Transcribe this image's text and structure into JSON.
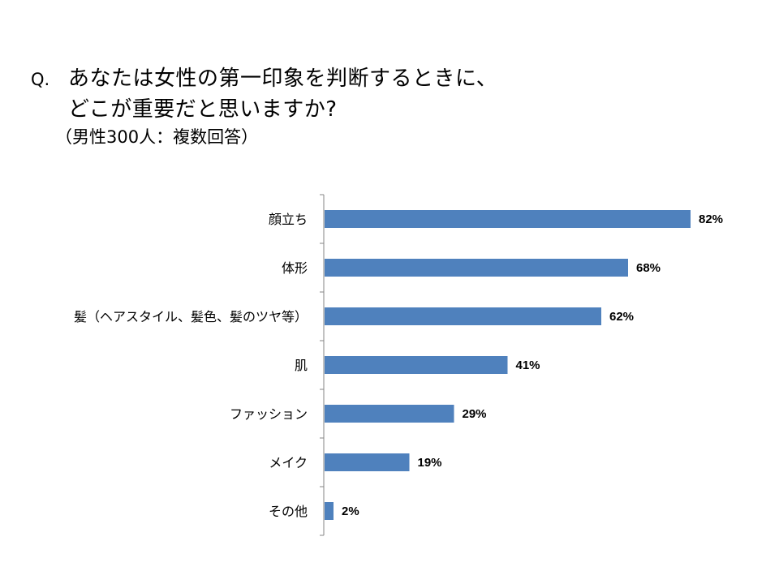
{
  "question": {
    "prefix": "Q.",
    "line1": "あなたは女性の第一印象を判断するときに、",
    "line2": "どこが重要だと思いますか?",
    "subtitle": "（男性300人：複数回答）"
  },
  "chart_data": {
    "type": "bar",
    "orientation": "horizontal",
    "categories": [
      "顔立ち",
      "体形",
      "髪（ヘアスタイル、髪色、髪のツヤ等）",
      "肌",
      "ファッション",
      "メイク",
      "その他"
    ],
    "values": [
      82,
      68,
      62,
      41,
      29,
      19,
      2
    ],
    "value_labels": [
      "82%",
      "68%",
      "62%",
      "41%",
      "29%",
      "19%",
      "2%"
    ],
    "unit": "%",
    "xlim": [
      0,
      100
    ],
    "bar_color": "#4F81BD",
    "grid": false,
    "legend": "none"
  }
}
